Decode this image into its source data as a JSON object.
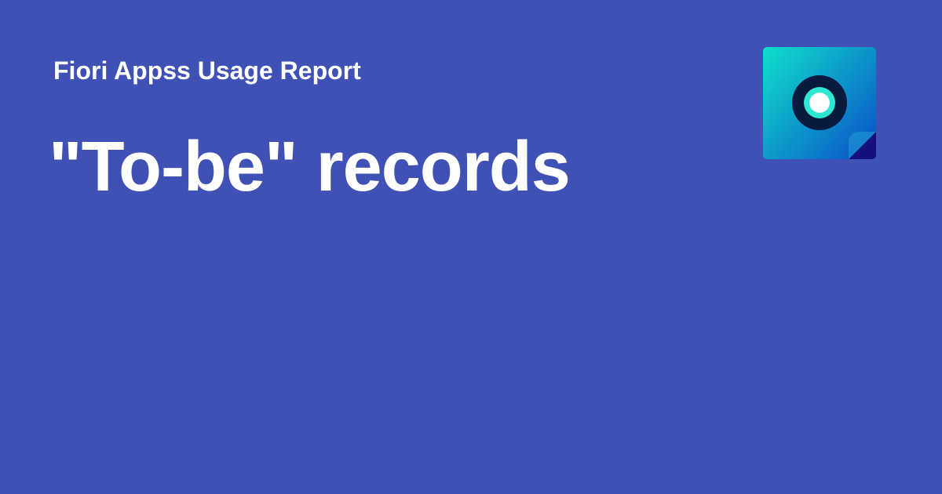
{
  "report": {
    "subtitle": "Fiori Appss Usage Report",
    "title": "\"To-be\" records"
  },
  "logo": {
    "icon_name": "record-logo-icon"
  },
  "colors": {
    "background": "#3f51b5",
    "text": "#ffffff",
    "logo_gradient_start": "#10e0cc",
    "logo_gradient_end": "#0a58c8",
    "logo_corner": "#140f7a",
    "logo_ring": "#081a3f",
    "logo_glow": "#2de6d4"
  }
}
